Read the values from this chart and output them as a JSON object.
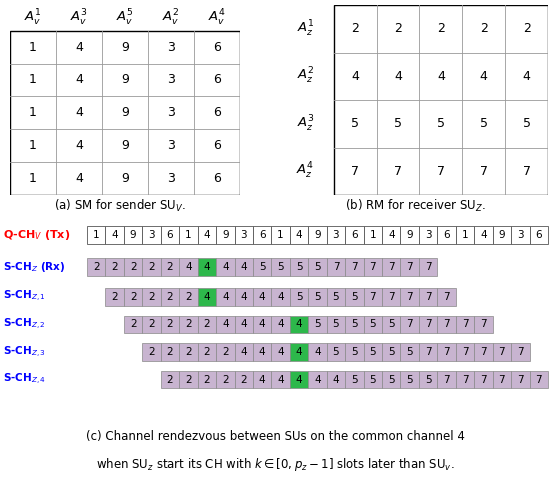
{
  "sm_data": [
    [
      1,
      4,
      9,
      3,
      6
    ],
    [
      1,
      4,
      9,
      3,
      6
    ],
    [
      1,
      4,
      9,
      3,
      6
    ],
    [
      1,
      4,
      9,
      3,
      6
    ],
    [
      1,
      4,
      9,
      3,
      6
    ]
  ],
  "sm_col_labels": [
    "$A_v^1$",
    "$A_v^3$",
    "$A_v^5$",
    "$A_v^2$",
    "$A_v^4$"
  ],
  "rm_data": [
    [
      2,
      2,
      2,
      2,
      2
    ],
    [
      4,
      4,
      4,
      4,
      4
    ],
    [
      5,
      5,
      5,
      5,
      5
    ],
    [
      7,
      7,
      7,
      7,
      7
    ]
  ],
  "rm_row_labels": [
    "$A_z^1$",
    "$A_z^2$",
    "$A_z^3$",
    "$A_z^4$"
  ],
  "qch_seq": [
    1,
    4,
    9,
    3,
    6,
    1,
    4,
    9,
    3,
    6,
    1,
    4,
    9,
    3,
    6,
    1,
    4,
    9,
    3,
    6,
    1,
    4,
    9,
    3,
    6
  ],
  "sch_rows": [
    [
      2,
      2,
      2,
      2,
      2,
      4,
      4,
      4,
      4,
      5,
      5,
      5,
      5,
      7,
      7,
      7,
      7,
      7,
      7
    ],
    [
      2,
      2,
      2,
      2,
      2,
      4,
      4,
      4,
      4,
      4,
      5,
      5,
      5,
      5,
      7,
      7,
      7,
      7,
      7
    ],
    [
      2,
      2,
      2,
      2,
      2,
      4,
      4,
      4,
      4,
      4,
      5,
      5,
      5,
      5,
      5,
      7,
      7,
      7,
      7,
      7
    ],
    [
      2,
      2,
      2,
      2,
      2,
      4,
      4,
      4,
      4,
      4,
      5,
      5,
      5,
      5,
      5,
      7,
      7,
      7,
      7,
      7,
      7
    ],
    [
      2,
      2,
      2,
      2,
      2,
      4,
      4,
      4,
      4,
      4,
      5,
      5,
      5,
      5,
      5,
      7,
      7,
      7,
      7,
      7,
      7
    ]
  ],
  "sch_offsets": [
    0,
    1,
    2,
    3,
    4
  ],
  "green_col_indices": [
    [
      6
    ],
    [
      5
    ],
    [
      9
    ],
    [
      8
    ],
    [
      7
    ]
  ],
  "sch_labels": [
    "S-CH$_Z$ (Rx)",
    "S-CH$_{Z,1}$",
    "S-CH$_{Z,2}$",
    "S-CH$_{Z,3}$",
    "S-CH$_{Z,4}$"
  ],
  "qch_label": "Q-CH$_V$ (Tx)",
  "label_a": "(a) SM for sender SU$_V$.",
  "label_b": "(b) RM for receiver SU$_Z$.",
  "label_c1": "(c) Channel rendezvous between SUs on the common channel 4",
  "label_c2": "when SU$_z$ start its CH with $k \\in [0, p_z - 1]$ slots later than SU$_v$.",
  "purple_color": "#C8B4D0",
  "green_color": "#2DB84B",
  "fig_w": 5.5,
  "fig_h": 4.91,
  "dpi": 100
}
